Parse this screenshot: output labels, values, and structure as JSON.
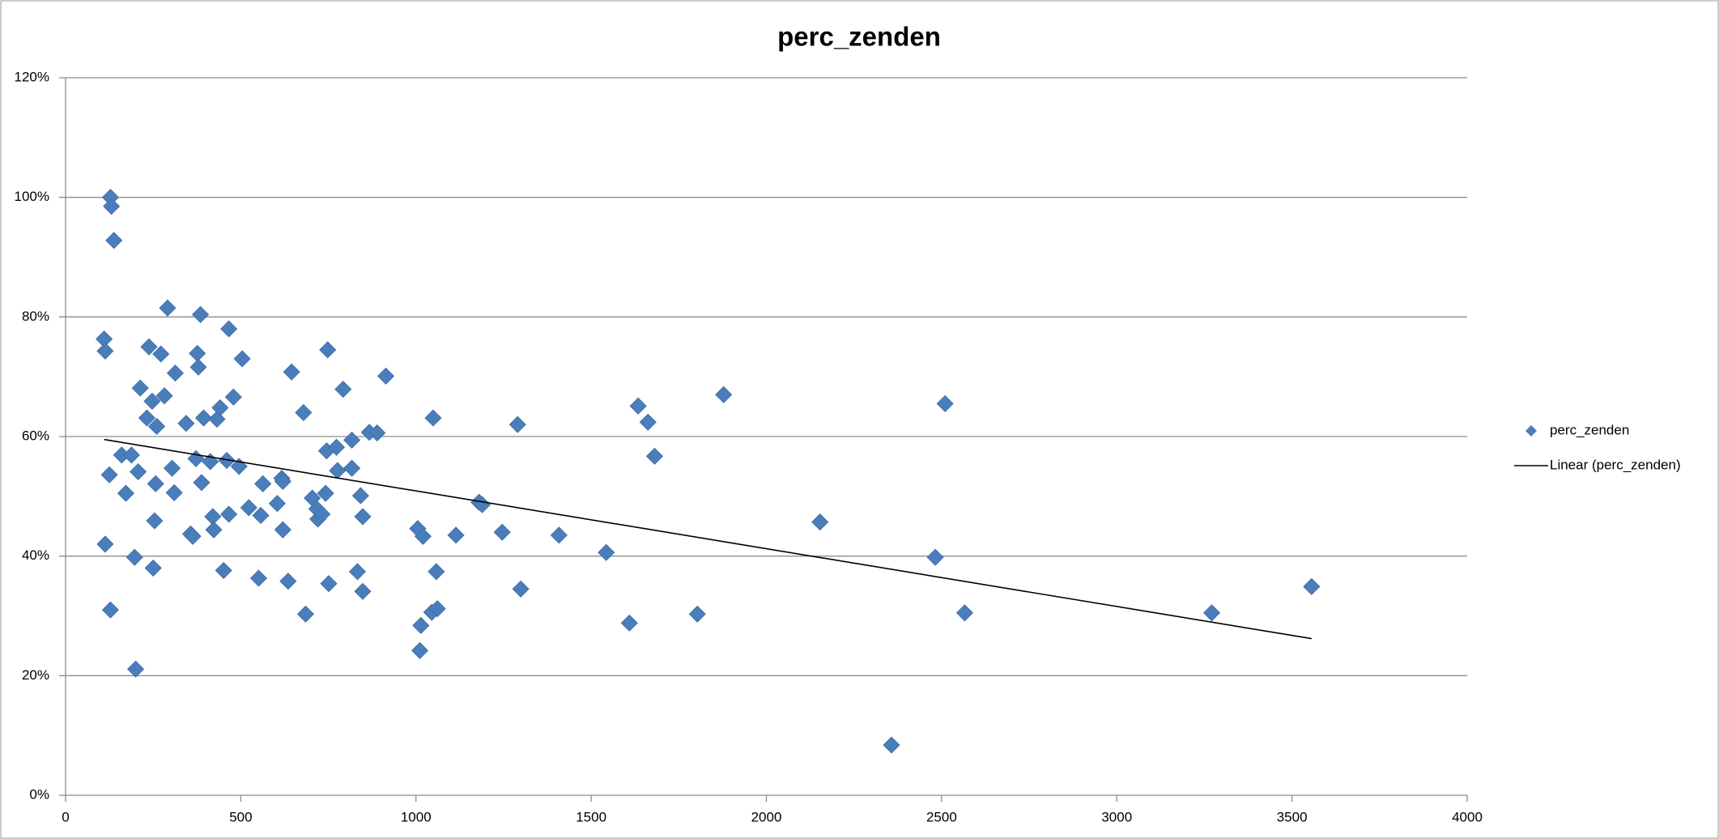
{
  "chart_data": {
    "type": "scatter",
    "title": "perc_zenden",
    "xlim": [
      0,
      4000
    ],
    "xticks": [
      0,
      500,
      1000,
      1500,
      2000,
      2500,
      3000,
      3500,
      4000
    ],
    "ylim": [
      0,
      120
    ],
    "yticks": [
      {
        "value": 0,
        "label": "0%"
      },
      {
        "value": 20,
        "label": "20%"
      },
      {
        "value": 40,
        "label": "40%"
      },
      {
        "value": 60,
        "label": "60%"
      },
      {
        "value": 80,
        "label": "80%"
      },
      {
        "value": 100,
        "label": "100%"
      },
      {
        "value": 120,
        "label": "120%"
      }
    ],
    "grid": true,
    "legend": "right",
    "series": [
      {
        "name": "perc_zenden",
        "color": "#4a7ebb",
        "x": [
          128,
          131,
          138,
          110,
          113,
          113,
          125,
          128,
          160,
          172,
          188,
          200,
          197,
          207,
          213,
          232,
          238,
          247,
          250,
          254,
          257,
          260,
          272,
          282,
          291,
          304,
          310,
          313,
          344,
          357,
          363,
          372,
          376,
          379,
          385,
          388,
          394,
          413,
          420,
          423,
          432,
          441,
          451,
          460,
          466,
          466,
          479,
          495,
          504,
          523,
          551,
          557,
          563,
          604,
          617,
          620,
          620,
          635,
          645,
          679,
          685,
          704,
          717,
          720,
          732,
          742,
          745,
          748,
          751,
          773,
          776,
          792,
          817,
          817,
          833,
          842,
          848,
          848,
          867,
          889,
          914,
          1005,
          1011,
          1014,
          1020,
          1049,
          1045,
          1061,
          1058,
          1114,
          1180,
          1189,
          1246,
          1290,
          1299,
          1408,
          1543,
          1609,
          1634,
          1662,
          1681,
          1803,
          1878,
          2153,
          2357,
          2482,
          2510,
          2566,
          3271,
          3556
        ],
        "values": [
          100.0,
          98.5,
          92.8,
          76.3,
          74.3,
          42.0,
          53.6,
          31.0,
          56.9,
          50.5,
          56.9,
          21.1,
          39.8,
          54.1,
          68.1,
          63.1,
          75.0,
          65.9,
          38.0,
          45.9,
          52.1,
          61.7,
          73.8,
          66.8,
          81.5,
          54.7,
          50.6,
          70.6,
          62.2,
          43.7,
          43.3,
          56.3,
          73.9,
          71.6,
          80.4,
          52.3,
          63.1,
          55.8,
          46.6,
          44.4,
          62.9,
          64.8,
          37.6,
          56.0,
          47.0,
          78.0,
          66.6,
          55.0,
          73.0,
          48.1,
          36.3,
          46.8,
          52.1,
          48.8,
          53.0,
          52.5,
          44.4,
          35.8,
          70.8,
          64.0,
          30.3,
          49.7,
          47.9,
          46.2,
          47.0,
          50.5,
          57.6,
          74.5,
          35.4,
          58.2,
          54.3,
          67.9,
          54.7,
          59.4,
          37.4,
          50.1,
          46.6,
          34.1,
          60.7,
          60.6,
          70.1,
          44.6,
          24.2,
          28.4,
          43.3,
          63.1,
          30.6,
          31.2,
          37.4,
          43.5,
          49.0,
          48.6,
          44.0,
          62.0,
          34.5,
          43.5,
          40.6,
          28.8,
          65.1,
          62.4,
          56.7,
          30.3,
          67.0,
          45.7,
          8.4,
          39.8,
          65.5,
          30.5,
          30.5,
          34.9
        ]
      },
      {
        "name": "Linear (perc_zenden)",
        "color": "#000000",
        "trendline": true,
        "x": [
          110,
          3556
        ],
        "values": [
          59.5,
          26.2
        ]
      }
    ]
  }
}
